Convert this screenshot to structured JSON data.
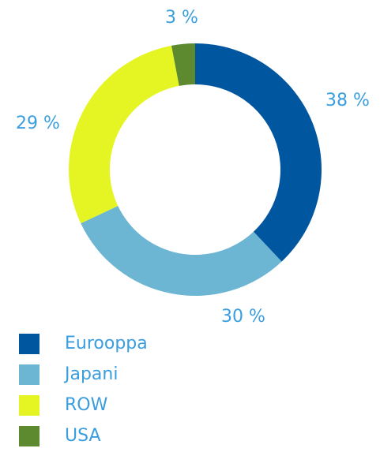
{
  "chart_data": {
    "type": "donut",
    "categories": [
      "Eurooppa",
      "Japani",
      "ROW",
      "USA"
    ],
    "values": [
      38,
      30,
      29,
      3
    ],
    "value_labels": [
      "38 %",
      "30 %",
      "29 %",
      "3 %"
    ],
    "colors": [
      "#00569f",
      "#6cb5d3",
      "#e5f524",
      "#5e8a2f"
    ],
    "legend": "bottom-left"
  }
}
